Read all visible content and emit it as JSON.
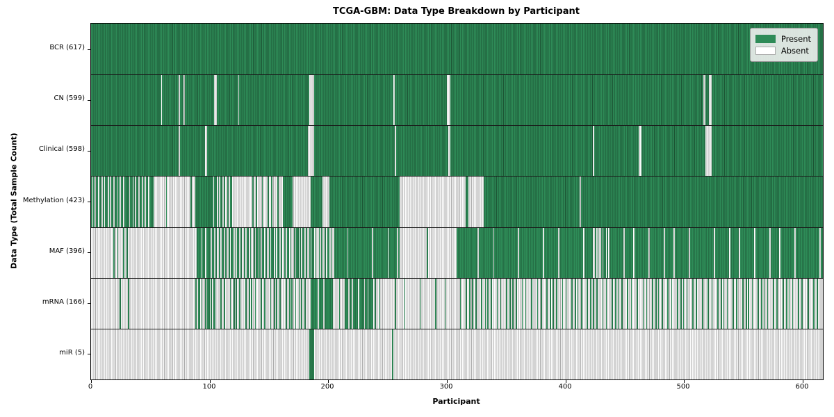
{
  "title": "TCGA-GBM: Data Type Breakdown by Participant",
  "axes": {
    "xlabel": "Participant",
    "ylabel": "Data Type (Total Sample Count)",
    "x_ticks": [
      0,
      100,
      200,
      300,
      400,
      500,
      600
    ]
  },
  "legend": {
    "items": [
      {
        "label": "Present",
        "color": "#2e8b57"
      },
      {
        "label": "Absent",
        "color": "#ffffff"
      }
    ]
  },
  "colors": {
    "present": "#2e8b57",
    "present_edge": "#1c5434",
    "absent": "#ffffff",
    "absent_edge": "#ababab"
  },
  "chart_data": {
    "type": "heatmap",
    "title": "TCGA-GBM: Data Type Breakdown by Participant",
    "xlabel": "Participant",
    "ylabel": "Data Type (Total Sample Count)",
    "x_range": [
      0,
      617
    ],
    "x_ticks": [
      0,
      100,
      200,
      300,
      400,
      500,
      600
    ],
    "legend": [
      "Present",
      "Absent"
    ],
    "legend_position": "upper right",
    "grid": false,
    "runs_format": "[start_participant, end_participant, fraction_present] (1=solid present, 0=absent, fraction=mixed region estimated from pixels)",
    "rows": [
      {
        "label": "BCR (617)",
        "name": "BCR",
        "total": 617,
        "runs": [
          [
            0,
            617,
            1
          ]
        ]
      },
      {
        "label": "CN (599)",
        "name": "CN",
        "total": 599,
        "runs": [
          [
            0,
            59,
            1
          ],
          [
            59,
            60,
            0
          ],
          [
            60,
            74,
            1
          ],
          [
            74,
            75,
            0
          ],
          [
            75,
            78,
            1
          ],
          [
            78,
            79,
            0
          ],
          [
            79,
            104,
            1
          ],
          [
            104,
            106,
            0
          ],
          [
            106,
            124,
            1
          ],
          [
            124,
            125,
            0
          ],
          [
            125,
            184,
            1
          ],
          [
            184,
            188,
            0
          ],
          [
            188,
            255,
            1
          ],
          [
            255,
            256,
            0
          ],
          [
            256,
            300,
            1
          ],
          [
            300,
            303,
            0
          ],
          [
            303,
            516,
            1
          ],
          [
            516,
            518,
            0
          ],
          [
            518,
            521,
            1
          ],
          [
            521,
            523,
            0
          ],
          [
            523,
            617,
            1
          ]
        ]
      },
      {
        "label": "Clinical (598)",
        "name": "Clinical",
        "total": 598,
        "runs": [
          [
            0,
            74,
            1
          ],
          [
            74,
            75,
            0
          ],
          [
            75,
            96,
            1
          ],
          [
            96,
            98,
            0
          ],
          [
            98,
            183,
            1
          ],
          [
            183,
            188,
            0
          ],
          [
            188,
            256,
            1
          ],
          [
            256,
            257,
            0
          ],
          [
            257,
            301,
            1
          ],
          [
            301,
            303,
            0
          ],
          [
            303,
            423,
            1
          ],
          [
            423,
            424,
            0
          ],
          [
            424,
            462,
            1
          ],
          [
            462,
            464,
            0
          ],
          [
            464,
            518,
            1
          ],
          [
            518,
            523,
            0
          ],
          [
            523,
            617,
            1
          ]
        ]
      },
      {
        "label": "Methylation (423)",
        "name": "Methylation",
        "total": 423,
        "runs": [
          [
            0,
            53,
            0.66
          ],
          [
            53,
            88,
            0.06
          ],
          [
            88,
            103,
            1
          ],
          [
            103,
            118,
            0.55
          ],
          [
            118,
            136,
            0.06
          ],
          [
            136,
            162,
            0.2
          ],
          [
            162,
            170,
            1
          ],
          [
            170,
            185,
            0
          ],
          [
            185,
            195,
            1
          ],
          [
            195,
            201,
            0
          ],
          [
            201,
            260,
            1
          ],
          [
            260,
            316,
            0
          ],
          [
            316,
            318,
            1
          ],
          [
            318,
            331,
            0
          ],
          [
            331,
            412,
            1
          ],
          [
            412,
            413,
            0
          ],
          [
            413,
            617,
            1
          ]
        ]
      },
      {
        "label": "MAF (396)",
        "name": "MAF",
        "total": 396,
        "runs": [
          [
            0,
            18,
            0
          ],
          [
            18,
            32,
            0.28
          ],
          [
            32,
            88,
            0
          ],
          [
            88,
            104,
            0.8
          ],
          [
            104,
            205,
            0.52
          ],
          [
            205,
            260,
            0.92
          ],
          [
            260,
            283,
            0
          ],
          [
            283,
            284,
            1
          ],
          [
            284,
            308,
            0
          ],
          [
            308,
            422,
            0.94
          ],
          [
            422,
            436,
            0.5
          ],
          [
            436,
            617,
            0.92
          ]
        ]
      },
      {
        "label": "mRNA (166)",
        "name": "mRNA",
        "total": 166,
        "runs": [
          [
            0,
            24,
            0
          ],
          [
            24,
            25,
            1
          ],
          [
            25,
            31,
            0
          ],
          [
            31,
            32,
            1
          ],
          [
            32,
            88,
            0
          ],
          [
            88,
            104,
            0.55
          ],
          [
            104,
            185,
            0.3
          ],
          [
            185,
            204,
            0.85
          ],
          [
            204,
            214,
            0.1
          ],
          [
            214,
            240,
            0.8
          ],
          [
            240,
            310,
            0.08
          ],
          [
            310,
            617,
            0.28
          ]
        ]
      },
      {
        "label": "miR (5)",
        "name": "miR",
        "total": 5,
        "runs": [
          [
            0,
            184,
            0
          ],
          [
            184,
            188,
            1
          ],
          [
            188,
            254,
            0
          ],
          [
            254,
            255,
            1
          ],
          [
            255,
            617,
            0
          ]
        ]
      }
    ]
  }
}
